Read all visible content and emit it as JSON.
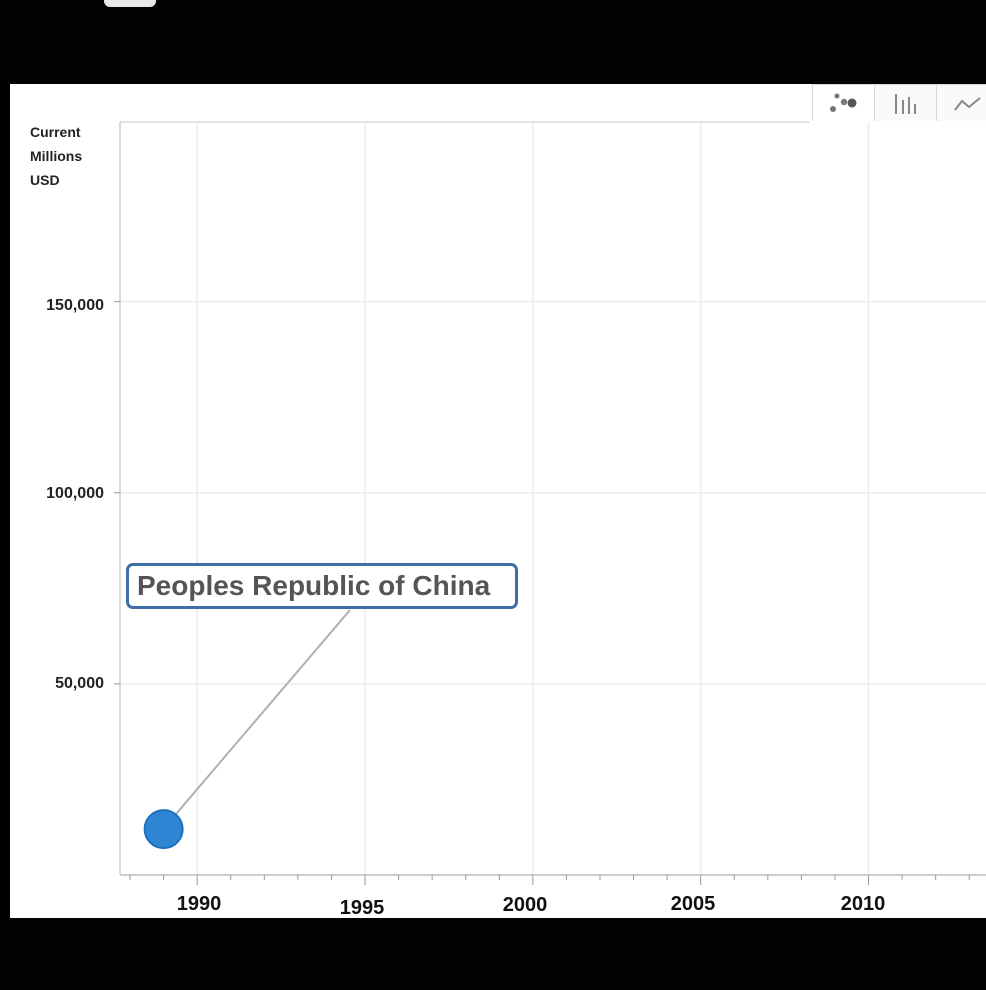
{
  "toolbar": {
    "buttons": [
      {
        "icon": "bubble-chart-icon",
        "active": true
      },
      {
        "icon": "bar-chart-icon",
        "active": false
      },
      {
        "icon": "line-chart-icon",
        "active": false
      }
    ]
  },
  "chart_data": {
    "type": "scatter",
    "title": "",
    "xlabel": "",
    "ylabel": "Current\nMillions\nUSD",
    "xlim": [
      1987.7,
      2013.5
    ],
    "ylim": [
      0,
      197000
    ],
    "x_ticks": [
      "1990",
      "1995",
      "2000",
      "2005",
      "2010"
    ],
    "y_ticks": [
      "50,000",
      "100,000",
      "150,000"
    ],
    "grid": true,
    "series": [
      {
        "name": "Peoples Republic of China",
        "color": "#2f84d4",
        "points": [
          {
            "x": 1989,
            "y": 12000
          }
        ]
      }
    ],
    "annotations": [
      {
        "text": "Peoples Republic of China",
        "target_series": 0
      }
    ]
  }
}
